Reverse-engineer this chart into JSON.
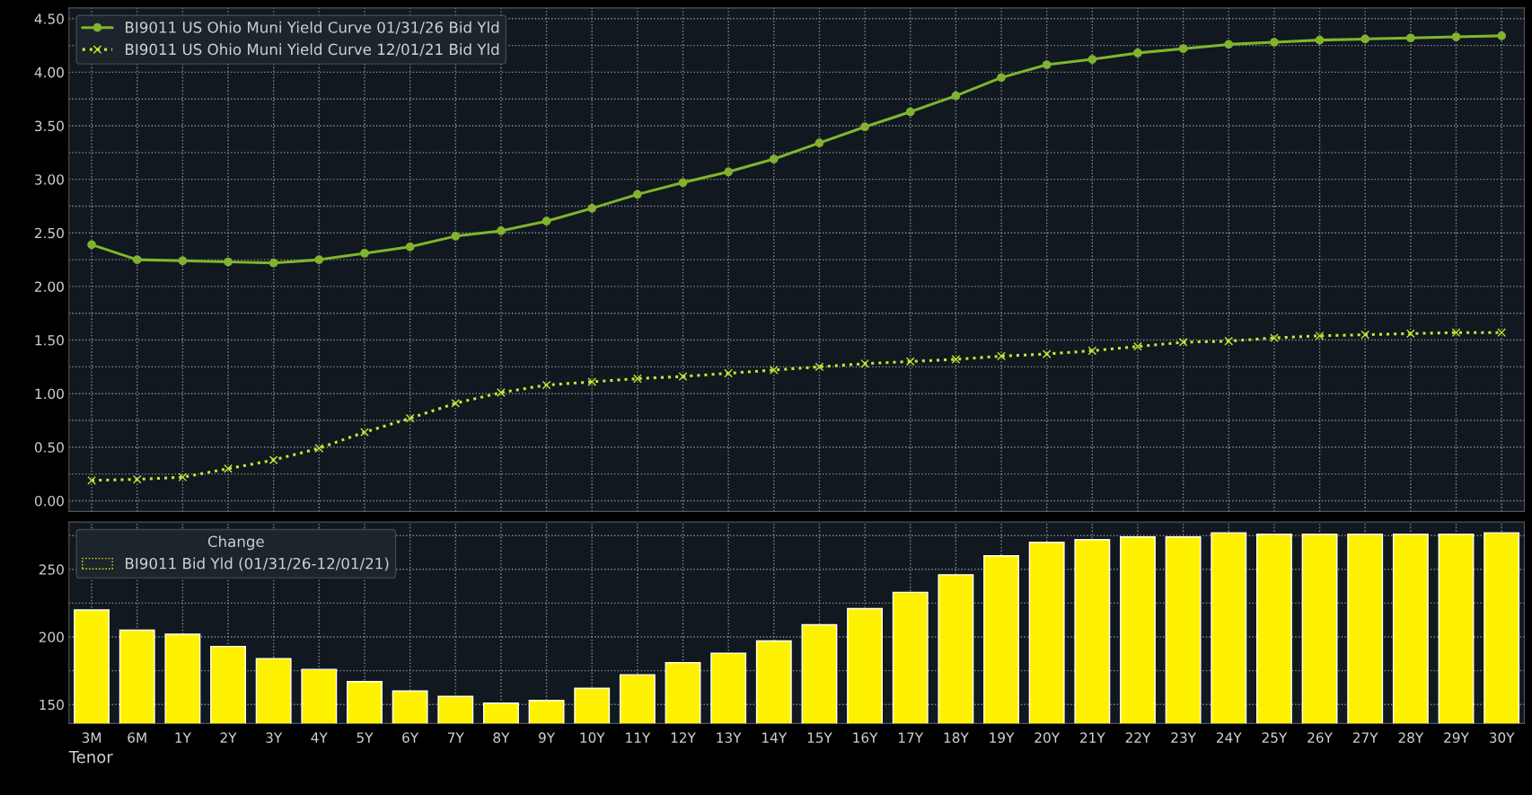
{
  "chart_data": [
    {
      "type": "line",
      "categories": [
        null,
        null,
        null,
        null,
        null,
        null,
        null,
        null,
        null,
        null,
        null,
        null,
        null,
        null,
        null,
        null,
        null,
        null,
        null,
        null,
        null,
        null,
        null,
        null,
        null,
        null,
        null,
        null,
        null,
        null,
        null,
        null
      ],
      "series": [
        {
          "name": "BI9011 US Ohio Muni Yield Curve 01/31/26 Bid Yld",
          "color": "#7fb52e",
          "marker": "circle",
          "line_style": "solid",
          "values": [
            2.39,
            2.25,
            2.24,
            2.23,
            2.22,
            2.25,
            2.31,
            2.37,
            2.47,
            2.52,
            2.61,
            2.73,
            2.86,
            2.97,
            3.07,
            3.19,
            3.34,
            3.49,
            3.63,
            3.78,
            3.95,
            4.07,
            4.12,
            4.18,
            4.22,
            4.26,
            4.28,
            4.3,
            4.31,
            4.32,
            4.33,
            4.34
          ]
        },
        {
          "name": "BI9011 US Ohio Muni Yield Curve 12/01/21 Bid Yld",
          "color": "#c8e632",
          "marker": "cross",
          "line_style": "dotted",
          "values": [
            0.19,
            0.2,
            0.22,
            0.3,
            0.38,
            0.49,
            0.64,
            0.77,
            0.91,
            1.01,
            1.08,
            1.11,
            1.14,
            1.16,
            1.19,
            1.22,
            1.25,
            1.28,
            1.3,
            1.32,
            1.35,
            1.37,
            1.4,
            1.44,
            1.48,
            1.49,
            1.52,
            1.54,
            1.55,
            1.56,
            1.57,
            1.57
          ]
        }
      ],
      "ylim": [
        -0.1,
        4.6
      ],
      "yticks": [
        {
          "value": 0,
          "label": "0.00"
        },
        {
          "value": 0.25,
          "label": null
        },
        {
          "value": 0.5,
          "label": "0.50"
        },
        {
          "value": 0.75,
          "label": null
        },
        {
          "value": 1,
          "label": "1.00"
        },
        {
          "value": 1.25,
          "label": null
        },
        {
          "value": 1.5,
          "label": "1.50"
        },
        {
          "value": 1.75,
          "label": null
        },
        {
          "value": 2,
          "label": "2.00"
        },
        {
          "value": 2.25,
          "label": null
        },
        {
          "value": 2.5,
          "label": "2.50"
        },
        {
          "value": 2.75,
          "label": null
        },
        {
          "value": 3,
          "label": "3.00"
        },
        {
          "value": 3.25,
          "label": null
        },
        {
          "value": 3.5,
          "label": "3.50"
        },
        {
          "value": 3.75,
          "label": null
        },
        {
          "value": 4,
          "label": "4.00"
        },
        {
          "value": 4.25,
          "label": null
        },
        {
          "value": 4.5,
          "label": "4.50"
        }
      ],
      "grid": true,
      "legend": "top left",
      "tick_labels": "y"
    },
    {
      "type": "bar",
      "xlabel": "Tenor",
      "legend_title": "Change",
      "categories": [
        "3M",
        "6M",
        "1Y",
        "2Y",
        "3Y",
        "4Y",
        "5Y",
        "6Y",
        "7Y",
        "8Y",
        "9Y",
        "10Y",
        "11Y",
        "12Y",
        "13Y",
        "14Y",
        "15Y",
        "16Y",
        "17Y",
        "18Y",
        "19Y",
        "20Y",
        "21Y",
        "22Y",
        "23Y",
        "24Y",
        "25Y",
        "26Y",
        "27Y",
        "28Y",
        "29Y",
        "30Y"
      ],
      "series": [
        {
          "name": "BI9011 Bid Yld (01/31/26-12/01/21)",
          "color": "#fff200",
          "values": [
            220,
            205,
            202,
            193,
            184,
            176,
            167,
            160,
            156,
            151,
            153,
            162,
            172,
            181,
            188,
            197,
            209,
            221,
            233,
            246,
            260,
            270,
            272,
            274,
            274,
            277,
            276,
            276,
            276,
            276,
            276,
            277
          ]
        }
      ],
      "ylim": [
        136,
        285
      ],
      "yticks": [
        {
          "value": 150,
          "label": "150"
        },
        {
          "value": 175,
          "label": null
        },
        {
          "value": 200,
          "label": "200"
        },
        {
          "value": 225,
          "label": null
        },
        {
          "value": 250,
          "label": "250"
        },
        {
          "value": 275,
          "label": null
        }
      ],
      "grid": true,
      "legend": "top left"
    }
  ]
}
